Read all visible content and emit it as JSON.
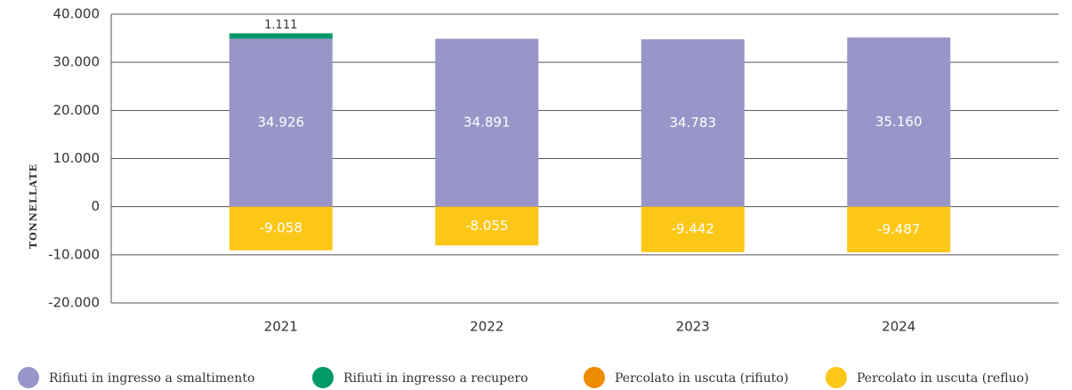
{
  "chart_data": {
    "type": "bar",
    "stacked": true,
    "y_label": "TONNELLATE",
    "categories": [
      "2021",
      "2022",
      "2023",
      "2024"
    ],
    "series": [
      {
        "name": "Rifiuti in ingresso a smaltimento",
        "color": "#9896c8",
        "values": [
          34926,
          34891,
          34783,
          35160
        ],
        "value_labels": [
          "34.926",
          "34.891",
          "34.783",
          "35.160"
        ]
      },
      {
        "name": "Rifiuti in ingresso a recupero",
        "color": "#009a66",
        "values": [
          1111,
          null,
          null,
          null
        ],
        "value_labels": [
          "1.111",
          null,
          null,
          null
        ]
      },
      {
        "name": "Percolato in uscuta (rifiuto)",
        "color": "#ef8b00",
        "values": [
          null,
          null,
          null,
          null
        ]
      },
      {
        "name": "Percolato in uscuta (refluo)",
        "color": "#fcc717",
        "values": [
          -9058,
          -8055,
          -9442,
          -9487
        ],
        "value_labels": [
          "-9.058",
          "-8.055",
          "-9.442",
          "-9.487"
        ]
      }
    ],
    "ylim": [
      -20000,
      40000
    ],
    "yticks": [
      {
        "value": -20000,
        "label": "-20.000"
      },
      {
        "value": -10000,
        "label": "-10.000"
      },
      0,
      {
        "value": 10000,
        "label": "10.000"
      },
      {
        "value": 20000,
        "label": "20.000"
      },
      {
        "value": 30000,
        "label": "30.000"
      },
      {
        "value": 40000,
        "label": "40.000"
      }
    ],
    "grid": true
  }
}
